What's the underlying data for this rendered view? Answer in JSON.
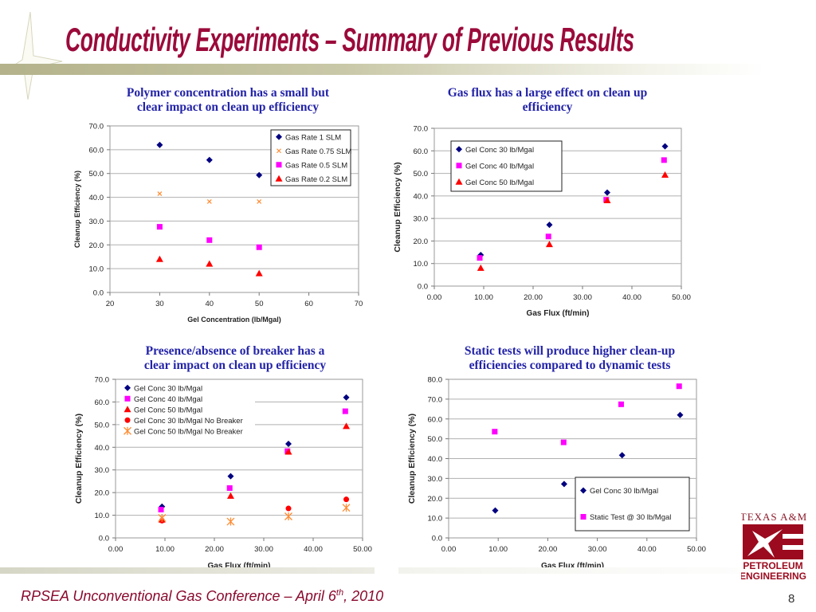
{
  "slide": {
    "title": "Conductivity Experiments – Summary of Previous Results",
    "footer_main": "RPSEA Unconventional Gas Conference – April 6",
    "footer_sup": "th",
    "footer_end": ", 2010",
    "page_number": "8",
    "logo": {
      "top": "TEXAS A&M",
      "line1": "PETROLEUM",
      "line2": "ENGINEERING"
    },
    "subtitles": [
      [
        "Polymer concentration has a small but",
        "clear impact on clean up efficiency"
      ],
      [
        "Gas flux has a large effect on clean up",
        "efficiency"
      ],
      [
        "Presence/absence of breaker has a",
        "clear impact on clean up efficiency"
      ],
      [
        "Static tests will produce higher clean-up",
        "efficiencies compared to dynamic tests"
      ]
    ],
    "colors": {
      "title": "#9b0a3a",
      "subtitle": "#2323a8",
      "navy": "#000080",
      "magenta": "#ff00ff",
      "red": "#ff0000",
      "orange": "#ff8c33"
    }
  },
  "chart_data": [
    {
      "type": "scatter",
      "xlabel": "Gel Concentration (lb/Mgal)",
      "ylabel": "Cleanup Efficiency  (%)",
      "xlim": [
        20,
        70
      ],
      "ylim": [
        0,
        70
      ],
      "xticks": [
        "20",
        "30",
        "40",
        "50",
        "60",
        "70"
      ],
      "yticks": [
        "0.0",
        "10.0",
        "20.0",
        "30.0",
        "40.0",
        "50.0",
        "60.0",
        "70.0"
      ],
      "grid": "horizontal",
      "legend": "top-right",
      "legend_border": true,
      "series": [
        {
          "name": "Gas Rate 1 SLM",
          "marker": "diamond",
          "color": "#000080",
          "x": [
            30,
            40,
            50
          ],
          "y": [
            62.0,
            55.7,
            49.3
          ]
        },
        {
          "name": "Gas Rate 0.75 SLM",
          "marker": "x",
          "color": "#ff8c33",
          "x": [
            30,
            40,
            50
          ],
          "y": [
            41.5,
            38.2,
            38.2
          ]
        },
        {
          "name": "Gas Rate 0.5 SLM",
          "marker": "square",
          "color": "#ff00ff",
          "x": [
            30,
            40,
            50
          ],
          "y": [
            27.6,
            22.0,
            19.0
          ]
        },
        {
          "name": "Gas Rate 0.2 SLM",
          "marker": "triangle",
          "color": "#ff0000",
          "x": [
            30,
            40,
            50
          ],
          "y": [
            14.0,
            12.0,
            8.0
          ]
        }
      ]
    },
    {
      "type": "scatter",
      "xlabel": "Gas Flux  (ft/min)",
      "ylabel": "Cleanup Efficiency (%)",
      "xlim": [
        0,
        50
      ],
      "ylim": [
        0,
        70
      ],
      "xticks": [
        "0.00",
        "10.00",
        "20.00",
        "30.00",
        "40.00",
        "50.00"
      ],
      "yticks": [
        "0.0",
        "10.0",
        "20.0",
        "30.0",
        "40.0",
        "50.0",
        "60.0",
        "70.0"
      ],
      "grid": "horizontal",
      "legend": "top-left",
      "legend_border": true,
      "series": [
        {
          "name": "Gel Conc 30 lb/Mgal",
          "marker": "diamond",
          "color": "#000080",
          "x": [
            9.4,
            23.3,
            35.0,
            46.7
          ],
          "y": [
            13.8,
            27.2,
            41.5,
            62.0
          ]
        },
        {
          "name": "Gel Conc 40 lb/Mgal",
          "marker": "square",
          "color": "#ff00ff",
          "x": [
            9.2,
            23.1,
            34.8,
            46.5
          ],
          "y": [
            12.5,
            22.0,
            38.3,
            55.9
          ]
        },
        {
          "name": "Gel Conc 50 lb/Mgal",
          "marker": "triangle",
          "color": "#ff0000",
          "x": [
            9.4,
            23.3,
            35.0,
            46.7
          ],
          "y": [
            8.0,
            18.5,
            38.0,
            49.3
          ]
        }
      ]
    },
    {
      "type": "scatter",
      "xlabel": "Gas Flux  (ft/min)",
      "ylabel": "Cleanup Efficiency (%)",
      "xlim": [
        0,
        50
      ],
      "ylim": [
        0,
        70
      ],
      "xticks": [
        "0.00",
        "10.00",
        "20.00",
        "30.00",
        "40.00",
        "50.00"
      ],
      "yticks": [
        "0.0",
        "10.0",
        "20.0",
        "30.0",
        "40.0",
        "50.0",
        "60.0",
        "70.0"
      ],
      "grid": "horizontal",
      "legend": "top-left",
      "legend_border": false,
      "series": [
        {
          "name": "Gel Conc 30 lb/Mgal",
          "marker": "diamond",
          "color": "#000080",
          "x": [
            9.4,
            23.3,
            35.0,
            46.7
          ],
          "y": [
            13.8,
            27.2,
            41.5,
            62.0
          ]
        },
        {
          "name": "Gel Conc 40 lb/Mgal",
          "marker": "square",
          "color": "#ff00ff",
          "x": [
            9.2,
            23.1,
            34.8,
            46.5
          ],
          "y": [
            12.5,
            22.0,
            38.3,
            55.9
          ]
        },
        {
          "name": "Gel Conc 50 lb/Mgal",
          "marker": "triangle",
          "color": "#ff0000",
          "x": [
            9.4,
            23.3,
            35.0,
            46.7
          ],
          "y": [
            8.0,
            18.5,
            38.0,
            49.3
          ]
        },
        {
          "name": "Gel Conc 30 lb/Mgal No Breaker",
          "marker": "circle",
          "color": "#ff0000",
          "x": [
            9.4,
            35.0,
            46.7
          ],
          "y": [
            7.6,
            13.0,
            17.0
          ]
        },
        {
          "name": "Gel Conc 50 lb/Mgal No Breaker",
          "marker": "asterisk",
          "color": "#ff8c33",
          "x": [
            9.4,
            23.3,
            35.0,
            46.7
          ],
          "y": [
            8.8,
            7.2,
            9.5,
            13.3
          ]
        }
      ]
    },
    {
      "type": "scatter",
      "xlabel": "Gas Flux  (ft/min)",
      "ylabel": "Cleanup Efficiency (%)",
      "xlim": [
        0,
        50
      ],
      "ylim": [
        0,
        80
      ],
      "xticks": [
        "0.00",
        "10.00",
        "20.00",
        "30.00",
        "40.00",
        "50.00"
      ],
      "yticks": [
        "0.0",
        "10.0",
        "20.0",
        "30.0",
        "40.0",
        "50.0",
        "60.0",
        "70.0",
        "80.0"
      ],
      "grid": "horizontal",
      "legend": "bottom-right",
      "legend_border": true,
      "series": [
        {
          "name": "Gel Conc 30 lb/Mgal",
          "marker": "diamond",
          "color": "#000080",
          "x": [
            9.4,
            23.3,
            35.0,
            46.7
          ],
          "y": [
            13.8,
            27.2,
            41.7,
            62.0
          ]
        },
        {
          "name": "Static Test @ 30 lb/Mgal",
          "marker": "square",
          "color": "#ff00ff",
          "x": [
            9.3,
            23.2,
            34.8,
            46.5
          ],
          "y": [
            53.6,
            48.2,
            67.4,
            76.5
          ]
        }
      ]
    }
  ]
}
